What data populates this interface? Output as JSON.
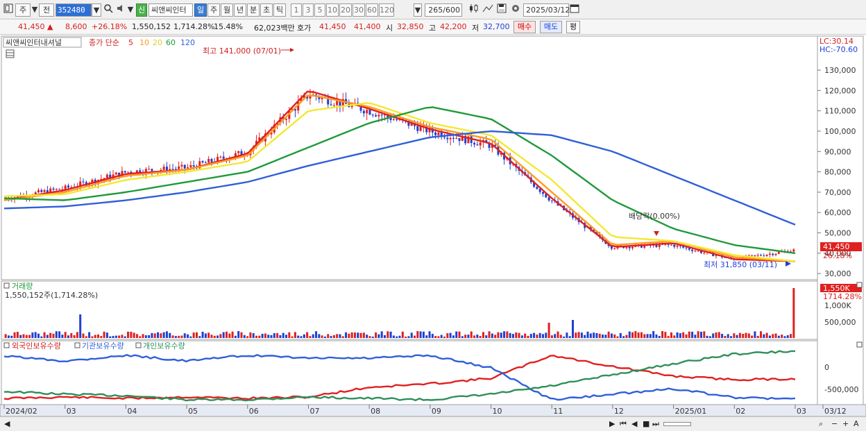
{
  "toolbar": {
    "market": "주",
    "prev": "전",
    "code": "352480",
    "new_badge": "신",
    "stock_name": "씨앤씨인터",
    "periods": [
      "일",
      "주",
      "월",
      "년",
      "분",
      "초",
      "틱"
    ],
    "active_period": "일",
    "intervals": [
      "1",
      "3",
      "5",
      "10",
      "20",
      "30",
      "60",
      "120"
    ],
    "count": "265",
    "count_max": "/600",
    "date": "2025/03/12"
  },
  "quote": {
    "price": "41,450",
    "change_arrow": "▲",
    "change": "8,600",
    "change_pct": "+26.18%",
    "volume": "1,550,152",
    "volume_pct": "1,714.28%",
    "turnover": "15.48%",
    "amount": "62,023백만",
    "hoga_label": "호가",
    "ask": "41,450",
    "bid": "41,400",
    "open_label": "시",
    "open": "32,850",
    "high_label": "고",
    "high": "42,200",
    "low_label": "저",
    "low": "32,700",
    "buy_label": "매수",
    "sell_label": "매도",
    "eval_label": "평"
  },
  "price_panel": {
    "legend_name": "씨앤씨인터내셔널",
    "legend_ma": "종가 단순",
    "ma_periods": [
      "5",
      "10",
      "20",
      "60",
      "120"
    ],
    "lc": "LC:30.14",
    "hc": "HC:-70.60",
    "high_annotation": "최고 141,000 (07/01)",
    "low_annotation": "최저 31,850 (03/11)",
    "dividend_annotation": "배당락(0.00%)",
    "last_price_tag": "41,450",
    "last_pct_tag": "26.18%",
    "y_ticks": [
      "130,000",
      "120,000",
      "110,000",
      "100,000",
      "90,000",
      "80,000",
      "70,000",
      "60,000",
      "50,000",
      "40,000",
      "30,000"
    ]
  },
  "volume_panel": {
    "title": "거래량",
    "value": "1,550,152주(1,714.28%)",
    "tag_value": "1,550K",
    "tag_pct": "1714.28%",
    "y_ticks": [
      "1,000K",
      "500,000"
    ]
  },
  "holding_panel": {
    "legend": [
      "외국인보유수량",
      "기관보유수량",
      "개인보유수량"
    ],
    "y_ticks": [
      "0",
      "-500,000"
    ]
  },
  "x_axis": [
    "2024/02",
    "03",
    "04",
    "05",
    "06",
    "07",
    "08",
    "09",
    "10",
    "11",
    "12",
    "2025/01",
    "02",
    "03",
    "03/12"
  ],
  "colors": {
    "up": "#e02020",
    "down": "#2040d0",
    "ma5": "#e02020",
    "ma10": "#ff9a1f",
    "ma20": "#f3e830",
    "ma60": "#1f9a3a",
    "ma120": "#2f5fd8",
    "foreign": "#e02020",
    "institution": "#2f5fd8",
    "individual": "#2f8f5a"
  },
  "chart_data": {
    "type": "line",
    "title": "",
    "x": [
      "2024/02",
      "03",
      "04",
      "05",
      "06",
      "07",
      "08",
      "09",
      "10",
      "11",
      "12",
      "2025/01",
      "02",
      "03"
    ],
    "series": [
      {
        "name": "close",
        "values": [
          67000,
          72000,
          80000,
          82000,
          90000,
          118000,
          110000,
          100000,
          93000,
          66000,
          43000,
          44000,
          37000,
          41450
        ]
      },
      {
        "name": "5",
        "values": [
          66000,
          71000,
          79000,
          81000,
          89000,
          120000,
          111000,
          101000,
          94000,
          67000,
          43000,
          45000,
          37000,
          36000
        ]
      },
      {
        "name": "10",
        "values": [
          66000,
          70000,
          78000,
          81000,
          88000,
          118000,
          112000,
          102000,
          96000,
          70000,
          44000,
          46000,
          38000,
          36000
        ]
      },
      {
        "name": "20",
        "values": [
          68000,
          69000,
          76000,
          80000,
          85000,
          110000,
          114000,
          104000,
          98000,
          76000,
          48000,
          46000,
          39000,
          36000
        ]
      },
      {
        "name": "60",
        "values": [
          67000,
          66000,
          70000,
          75000,
          80000,
          92000,
          104000,
          112000,
          106000,
          88000,
          66000,
          52000,
          44000,
          40000
        ]
      },
      {
        "name": "120",
        "values": [
          62000,
          63000,
          66000,
          70000,
          75000,
          83000,
          90000,
          97000,
          100000,
          98000,
          90000,
          78000,
          66000,
          54000
        ]
      }
    ],
    "ylim": [
      28000,
      144000
    ]
  }
}
